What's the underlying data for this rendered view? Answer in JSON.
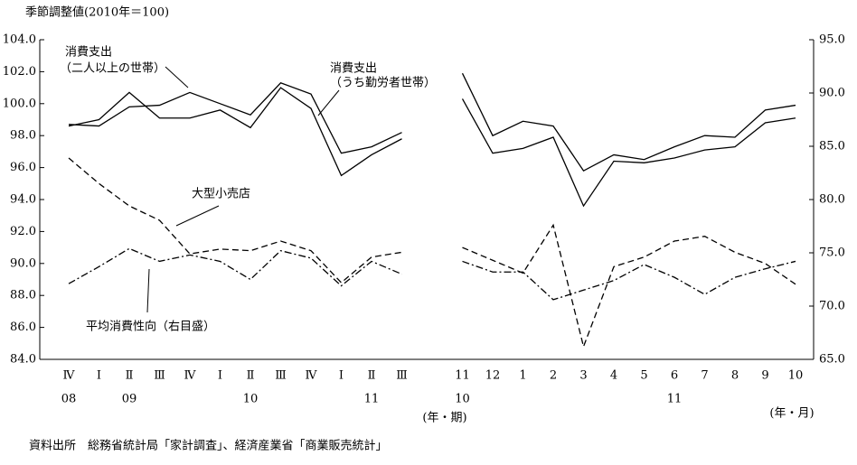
{
  "chart_data": {
    "type": "line",
    "ylabel": "季節調整値(2010年＝100)",
    "source": "資料出所　総務省統計局「家計調査」、経済産業省「商業販売統計」",
    "categories": [
      "Ⅳ",
      "Ⅰ",
      "Ⅱ",
      "Ⅲ",
      "Ⅳ",
      "Ⅰ",
      "Ⅱ",
      "Ⅲ",
      "Ⅳ",
      "Ⅰ",
      "Ⅱ",
      "Ⅲ",
      null,
      "11",
      "12",
      "1",
      "2",
      "3",
      "4",
      "5",
      "6",
      "7",
      "8",
      "9",
      "10"
    ],
    "category_years": [
      "08",
      null,
      "09",
      null,
      null,
      null,
      "10",
      null,
      null,
      null,
      "11",
      null,
      null,
      "10",
      null,
      null,
      null,
      null,
      null,
      null,
      "11",
      null,
      null,
      null,
      null
    ],
    "x_unit_labels": [
      "(年・期)",
      "(年・月)"
    ],
    "ylim": [
      84,
      104
    ],
    "yticks": [
      {
        "value": 84,
        "label": "84.0"
      },
      {
        "value": 86,
        "label": "86.0"
      },
      {
        "value": 88,
        "label": "88.0"
      },
      {
        "value": 90,
        "label": "90.0"
      },
      {
        "value": 92,
        "label": "92.0"
      },
      {
        "value": 94,
        "label": "94.0"
      },
      {
        "value": 96,
        "label": "96.0"
      },
      {
        "value": 98,
        "label": "98.0"
      },
      {
        "value": 100,
        "label": "100.0"
      },
      {
        "value": 102,
        "label": "102.0"
      },
      {
        "value": 104,
        "label": "104.0"
      }
    ],
    "y2lim": [
      65,
      95
    ],
    "y2ticks": [
      {
        "value": 65,
        "label": "65.0"
      },
      {
        "value": 70,
        "label": "70.0"
      },
      {
        "value": 75,
        "label": "75.0"
      },
      {
        "value": 80,
        "label": "80.0"
      },
      {
        "value": 85,
        "label": "85.0"
      },
      {
        "value": 90,
        "label": "90.0"
      },
      {
        "value": 95,
        "label": "95.0"
      }
    ],
    "series": [
      {
        "label": [
          "消費支出",
          "（二人以上の世帯）"
        ],
        "color": "#000",
        "dash": "solid",
        "values": [
          98.7,
          98.6,
          99.8,
          99.9,
          100.7,
          100.0,
          99.3,
          101.3,
          100.6,
          96.9,
          97.3,
          98.2,
          null,
          101.9,
          98.0,
          98.9,
          98.6,
          95.8,
          96.8,
          96.5,
          97.3,
          98.0,
          97.9,
          99.6,
          99.9
        ]
      },
      {
        "label": [
          "消費支出",
          "（うち勤労者世帯）"
        ],
        "color": "#000",
        "dash": "solid",
        "values": [
          98.6,
          99.0,
          100.7,
          99.1,
          99.1,
          99.6,
          98.5,
          101.0,
          99.7,
          95.5,
          96.8,
          97.8,
          null,
          100.3,
          96.9,
          97.2,
          97.9,
          93.6,
          96.4,
          96.3,
          96.6,
          97.1,
          97.3,
          98.8,
          99.1
        ]
      },
      {
        "label": [
          "大型小売店"
        ],
        "color": "#000",
        "dash": "dashed",
        "values": [
          96.6,
          95.0,
          93.6,
          92.7,
          90.6,
          90.9,
          90.8,
          91.4,
          90.8,
          88.8,
          90.4,
          90.7,
          null,
          91.0,
          90.2,
          89.4,
          92.4,
          84.8,
          89.8,
          90.4,
          91.4,
          91.7,
          90.7,
          90.0,
          88.7
        ]
      },
      {
        "label": [
          "平均消費性向（右目盛）"
        ],
        "color": "#000",
        "dash": "dashdot",
        "axis": "y2",
        "values": [
          72.1,
          73.7,
          75.4,
          74.2,
          74.8,
          74.2,
          72.5,
          75.2,
          74.5,
          71.9,
          74.2,
          73.0,
          null,
          74.2,
          73.2,
          73.2,
          70.6,
          71.5,
          72.4,
          73.9,
          72.7,
          71.1,
          72.7,
          73.5,
          74.2
        ]
      }
    ]
  }
}
